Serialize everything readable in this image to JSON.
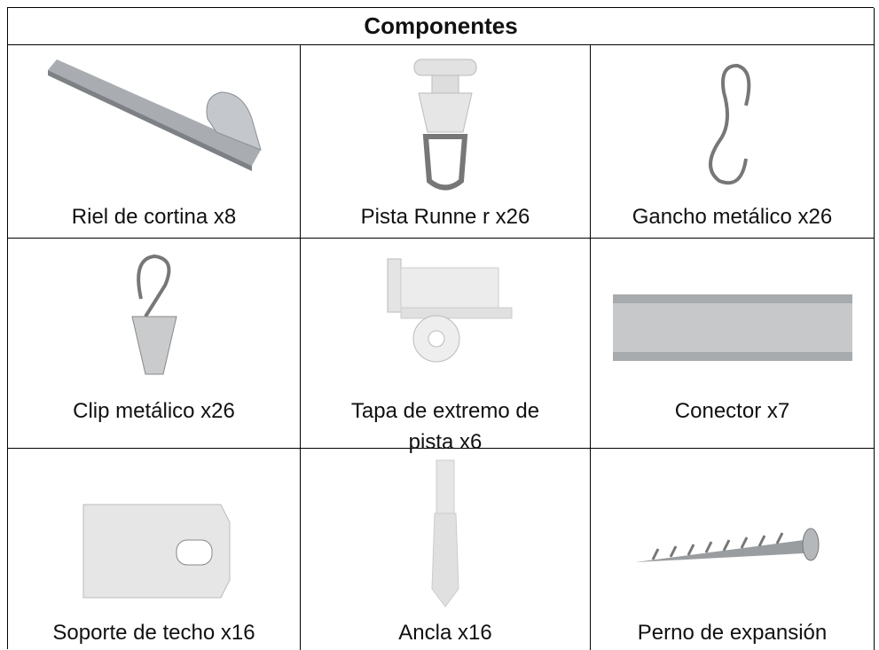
{
  "table": {
    "title": "Componentes",
    "rows": [
      [
        "Riel de cortina x8",
        "Pista Runne r x26",
        "Gancho metálico x26"
      ],
      [
        "Clip metálico x26",
        "Tapa de extremo de pista x6",
        "Conector x7"
      ],
      [
        "Soporte de techo x16",
        "Ancla x16",
        "Perno de expansión"
      ]
    ]
  }
}
